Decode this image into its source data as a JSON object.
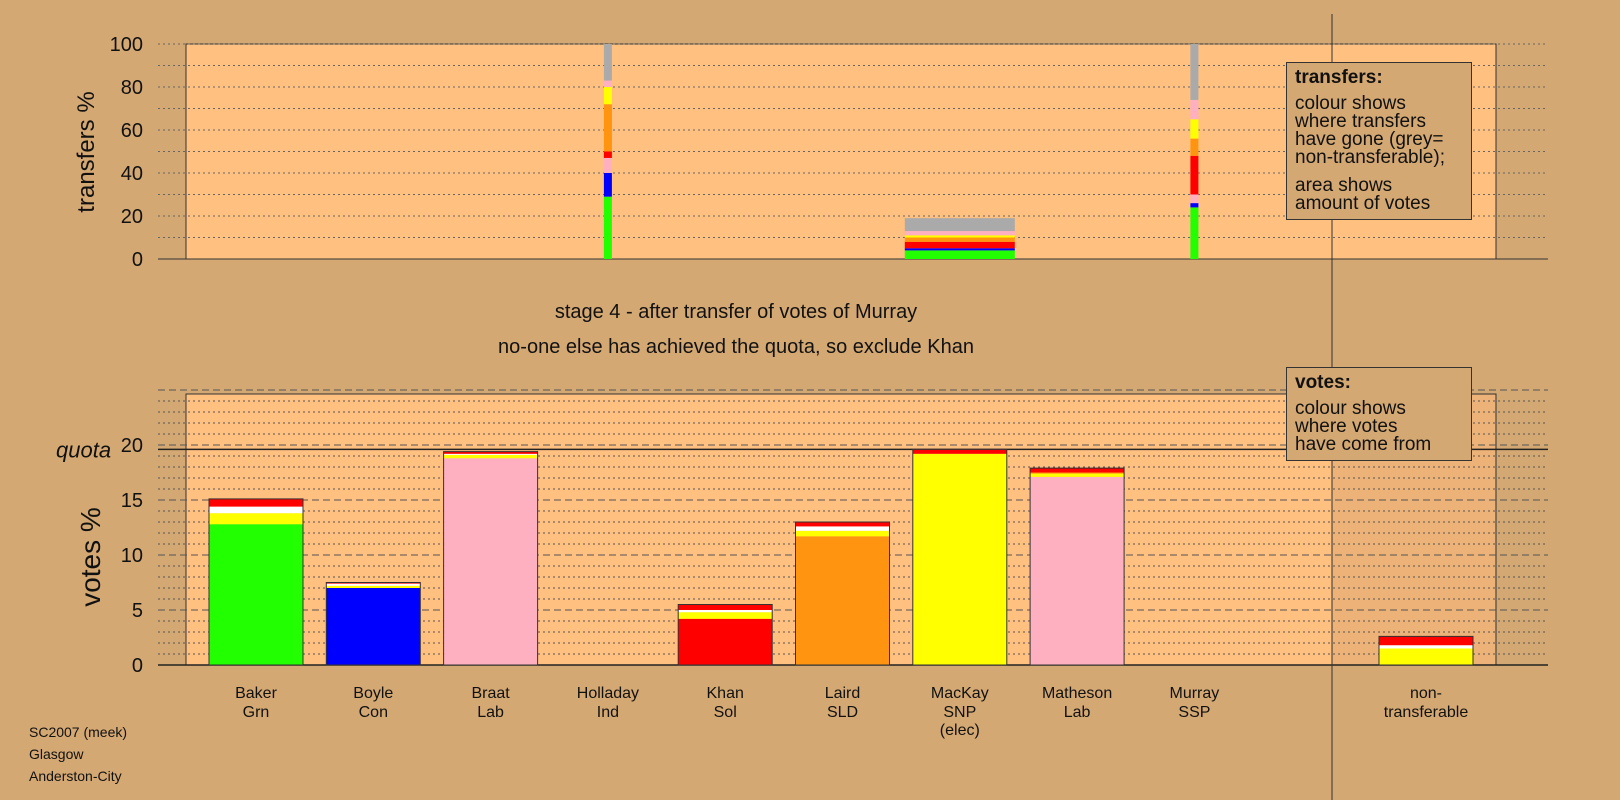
{
  "stage_title": "stage 4 - after transfer of votes of Murray",
  "stage_note": "no-one else has achieved the quota, so exclude Khan",
  "footer": {
    "line1": "SC2007 (meek)",
    "line2": "Glasgow",
    "line3": "Anderston-City"
  },
  "legend_transfers": {
    "title": "transfers:",
    "lines": [
      "colour shows",
      "where transfers",
      "have gone (grey=",
      "non-transferable);"
    ],
    "lines2": [
      "area shows",
      "amount of votes"
    ]
  },
  "legend_votes": {
    "title": "votes:",
    "lines": [
      "colour shows",
      "where votes",
      "have come from"
    ]
  },
  "colors": {
    "green": "#22ff00",
    "blue": "#0000ff",
    "pink": "#ffb0c0",
    "red": "#ff0000",
    "orange": "#ff9410",
    "yellow": "#ffff00",
    "white": "#ffffff",
    "grey": "#aaaaaa",
    "panel": "#ffc080",
    "background": "#d4a873"
  },
  "chart_data": [
    {
      "type": "bar",
      "title": "",
      "ylabel": "transfers %",
      "ylim": [
        0,
        100
      ],
      "yticks": [
        0,
        20,
        40,
        60,
        80,
        100
      ],
      "columns": [
        {
          "candidate": "Holladay",
          "width": "narrow",
          "stack": [
            [
              "green",
              29
            ],
            [
              "blue",
              11
            ],
            [
              "pink",
              7
            ],
            [
              "red",
              3
            ],
            [
              "orange",
              22
            ],
            [
              "yellow",
              8
            ],
            [
              "pink",
              3
            ],
            [
              "grey",
              17
            ]
          ]
        },
        {
          "candidate": "MacKay",
          "width": "wide",
          "stack": [
            [
              "green",
              4
            ],
            [
              "blue",
              1
            ],
            [
              "red",
              3
            ],
            [
              "orange",
              2
            ],
            [
              "yellow",
              1
            ],
            [
              "pink",
              2
            ],
            [
              "grey",
              6
            ]
          ]
        },
        {
          "candidate": "Murray",
          "width": "narrow",
          "stack": [
            [
              "green",
              24
            ],
            [
              "blue",
              2
            ],
            [
              "pink",
              4
            ],
            [
              "red",
              18
            ],
            [
              "orange",
              8
            ],
            [
              "yellow",
              9
            ],
            [
              "pink",
              9
            ],
            [
              "grey",
              26
            ]
          ]
        }
      ]
    },
    {
      "type": "bar",
      "title": "",
      "ylabel": "votes %",
      "ylim": [
        0,
        25
      ],
      "yticks": [
        0,
        5,
        10,
        15,
        20
      ],
      "quota": 19.6,
      "quota_label": "quota",
      "categories": [
        {
          "name": "Baker",
          "party": "Grn",
          "extra": "",
          "total": 15.1,
          "stack": [
            [
              "green",
              12.8
            ],
            [
              "yellow",
              1.0
            ],
            [
              "white",
              0.6
            ],
            [
              "red",
              0.7
            ]
          ]
        },
        {
          "name": "Boyle",
          "party": "Con",
          "extra": "",
          "total": 7.5,
          "stack": [
            [
              "blue",
              7.0
            ],
            [
              "yellow",
              0.2
            ],
            [
              "white",
              0.2
            ],
            [
              "red",
              0.1
            ]
          ]
        },
        {
          "name": "Braat",
          "party": "Lab",
          "extra": "",
          "total": 19.4,
          "stack": [
            [
              "pink",
              18.8
            ],
            [
              "yellow",
              0.3
            ],
            [
              "white",
              0.1
            ],
            [
              "red",
              0.2
            ]
          ]
        },
        {
          "name": "Holladay",
          "party": "Ind",
          "extra": "",
          "total": 0,
          "stack": []
        },
        {
          "name": "Khan",
          "party": "Sol",
          "extra": "",
          "total": 5.5,
          "stack": [
            [
              "red",
              4.2
            ],
            [
              "yellow",
              0.6
            ],
            [
              "white",
              0.2
            ],
            [
              "red",
              0.5
            ]
          ]
        },
        {
          "name": "Laird",
          "party": "SLD",
          "extra": "",
          "total": 13.0,
          "stack": [
            [
              "orange",
              11.7
            ],
            [
              "yellow",
              0.5
            ],
            [
              "white",
              0.4
            ],
            [
              "red",
              0.4
            ]
          ]
        },
        {
          "name": "MacKay",
          "party": "SNP",
          "extra": "(elec)",
          "total": 19.6,
          "stack": [
            [
              "yellow",
              19.2
            ],
            [
              "red",
              0.4
            ]
          ]
        },
        {
          "name": "Matheson",
          "party": "Lab",
          "extra": "",
          "total": 17.9,
          "stack": [
            [
              "pink",
              17.1
            ],
            [
              "yellow",
              0.3
            ],
            [
              "orange",
              0.1
            ],
            [
              "red",
              0.4
            ]
          ]
        },
        {
          "name": "Murray",
          "party": "SSP",
          "extra": "",
          "total": 0,
          "stack": []
        },
        {
          "name": "non-",
          "party": "transferable",
          "extra": "",
          "total": 2.6,
          "stack": [
            [
              "yellow",
              1.5
            ],
            [
              "white",
              0.3
            ],
            [
              "red",
              0.8
            ]
          ]
        }
      ]
    }
  ]
}
